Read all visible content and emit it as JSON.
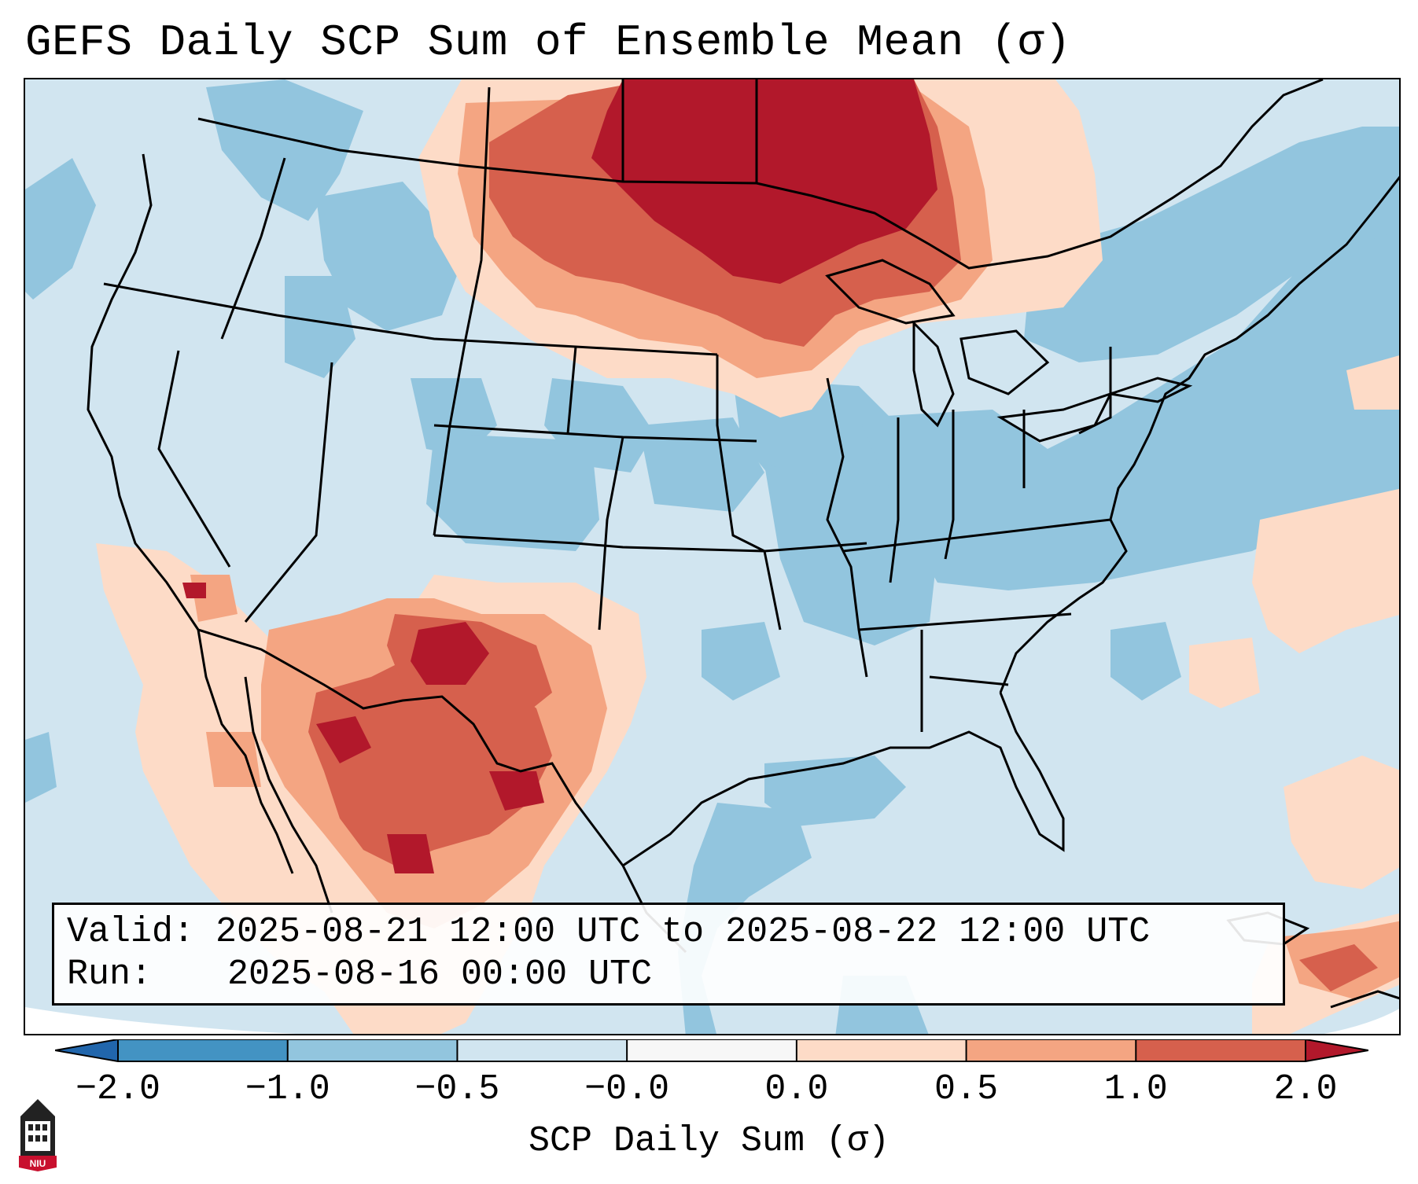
{
  "title": "GEFS Daily SCP Sum of Ensemble Mean (σ)",
  "info": {
    "valid_label": "Valid:",
    "valid_value": "2025-08-21 12:00 UTC to 2025-08-22 12:00 UTC",
    "run_label": "Run:",
    "run_value": "2025-08-16 00:00 UTC"
  },
  "colorbar": {
    "label": "SCP Daily Sum (σ)",
    "ticks": [
      "−2.0",
      "−1.0",
      "−0.5",
      "−0.0",
      "0.0",
      "0.5",
      "1.0",
      "2.0"
    ],
    "colors": [
      "#2166ac",
      "#4393c3",
      "#92c5de",
      "#d1e5f0",
      "#f7f7f7",
      "#fddbc7",
      "#f4a582",
      "#d6604d",
      "#b2182b"
    ]
  },
  "logo_text": "NIU",
  "colors": {
    "strong_positive": "#b2182b",
    "positive": "#d6604d",
    "weak_positive": "#f4a582",
    "slight_positive": "#fddbc7",
    "near_zero": "#d1e5f0",
    "negative": "#92c5de"
  }
}
